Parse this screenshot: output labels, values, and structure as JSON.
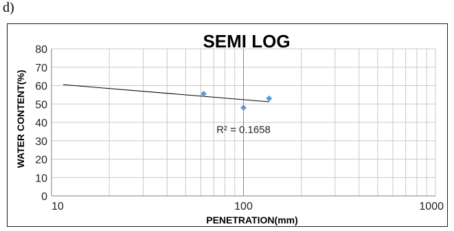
{
  "figure": {
    "panel_label": "d)"
  },
  "chart_data": {
    "type": "scatter",
    "title": "SEMI LOG",
    "xlabel": "PENETRATION(mm)",
    "ylabel": "WATER CONTENT(%)",
    "x_scale": "log",
    "xlim": [
      10,
      1000
    ],
    "ylim": [
      0,
      80
    ],
    "x_ticks": [
      10,
      100,
      1000
    ],
    "x_tick_labels": [
      "10",
      "100",
      "1000"
    ],
    "y_ticks": [
      0,
      10,
      20,
      30,
      40,
      50,
      60,
      70,
      80
    ],
    "y_tick_labels": [
      "0",
      "10",
      "20",
      "30",
      "40",
      "50",
      "60",
      "70",
      "80"
    ],
    "grid": true,
    "legend": "none",
    "series": [
      {
        "x": [
          62,
          100,
          136
        ],
        "y": [
          55.5,
          48,
          53
        ],
        "marker": "diamond",
        "color": "#5b9bd5"
      }
    ],
    "trendline": {
      "type": "logarithmic",
      "x_range": [
        11.5,
        136
      ],
      "y_range": [
        60.5,
        51.2
      ],
      "color": "#000000"
    },
    "annotations": [
      {
        "text": "R² = 0.1658",
        "x": 100,
        "y": 36
      }
    ]
  }
}
